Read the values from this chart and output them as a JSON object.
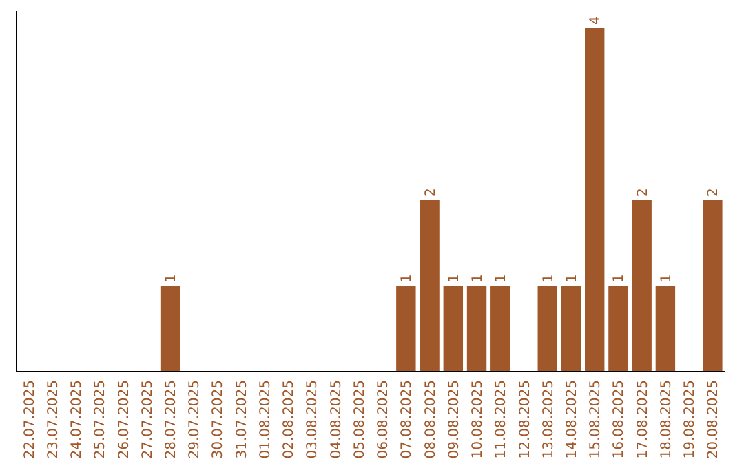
{
  "chart_data": {
    "type": "bar",
    "categories": [
      "22.07.2025",
      "23.07.2025",
      "24.07.2025",
      "25.07.2025",
      "26.07.2025",
      "27.07.2025",
      "28.07.2025",
      "29.07.2025",
      "30.07.2025",
      "31.07.2025",
      "01.08.2025",
      "02.08.2025",
      "03.08.2025",
      "04.08.2025",
      "05.08.2025",
      "06.08.2025",
      "07.08.2025",
      "08.08.2025",
      "09.08.2025",
      "10.08.2025",
      "11.08.2025",
      "12.08.2025",
      "13.08.2025",
      "14.08.2025",
      "15.08.2025",
      "16.08.2025",
      "17.08.2025",
      "18.08.2025",
      "19.08.2025",
      "20.08.2025"
    ],
    "values": [
      0,
      0,
      0,
      0,
      0,
      0,
      1,
      0,
      0,
      0,
      0,
      0,
      0,
      0,
      0,
      0,
      1,
      2,
      1,
      1,
      1,
      0,
      1,
      1,
      4,
      1,
      2,
      1,
      0,
      2
    ],
    "value_labels": [
      null,
      null,
      null,
      null,
      null,
      null,
      "1",
      null,
      null,
      null,
      null,
      null,
      null,
      null,
      null,
      null,
      "1",
      "2",
      "1",
      "1",
      "1",
      null,
      "1",
      "1",
      "4",
      "1",
      "2",
      "1",
      null,
      "2"
    ],
    "color": "#a0582a"
  }
}
